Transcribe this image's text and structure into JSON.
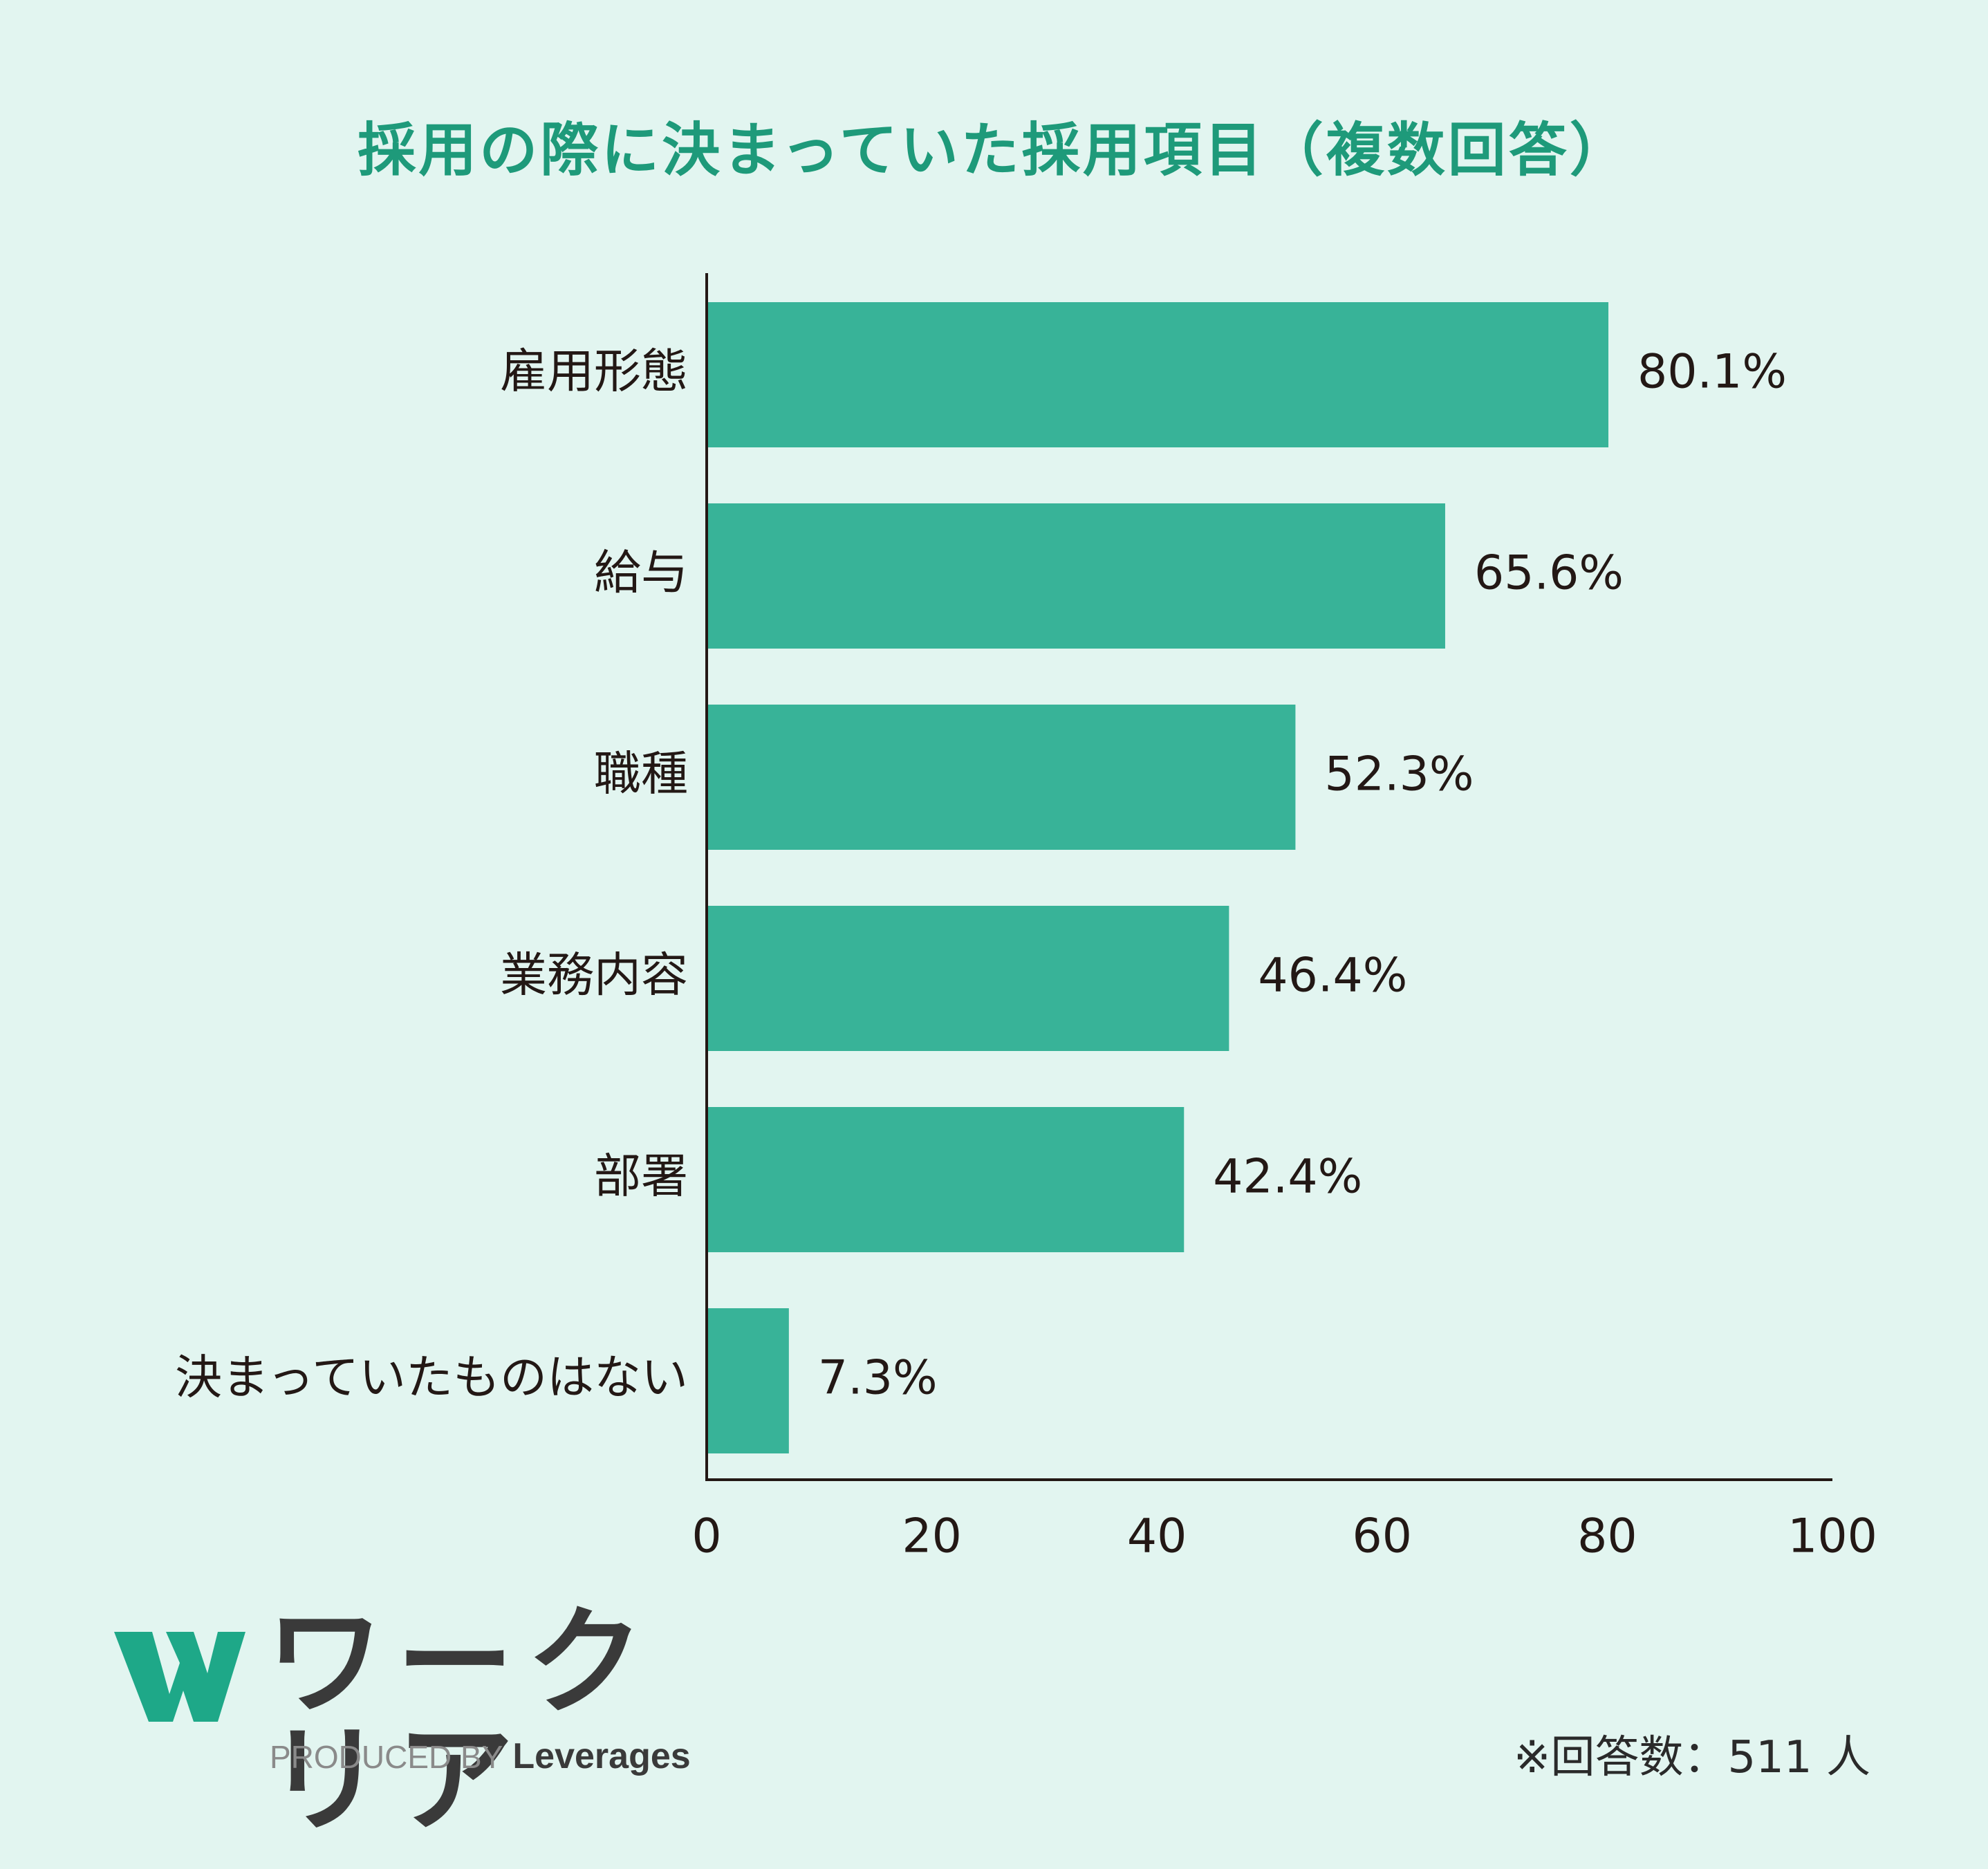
{
  "colors": {
    "background": "#e2f5f0",
    "bar": "#38b398",
    "title": "#1e9a7a",
    "text": "#231815",
    "logo_mark": "#1ea888"
  },
  "chart_data": {
    "type": "bar",
    "orientation": "horizontal",
    "title": "採用の際に決まっていた採用項目（複数回答）",
    "categories": [
      "雇用形態",
      "給与",
      "職種",
      "業務内容",
      "部署",
      "決まっていたものはない"
    ],
    "values": [
      80.1,
      65.6,
      52.3,
      46.4,
      42.4,
      7.3
    ],
    "value_labels": [
      "80.1%",
      "65.6%",
      "52.3%",
      "46.4%",
      "42.4%",
      "7.3%"
    ],
    "xlim": [
      0,
      100
    ],
    "xticks": [
      "0",
      "20",
      "40",
      "60",
      "80",
      "100"
    ],
    "xlabel": "",
    "ylabel": "",
    "grid": false,
    "legend": "none"
  },
  "logo": {
    "icon": "w-logo-icon",
    "wordmark": "ワークリア",
    "produced_by": "PRODUCED BY",
    "brand": "Leverages"
  },
  "footnote": "※回答数：511 人"
}
